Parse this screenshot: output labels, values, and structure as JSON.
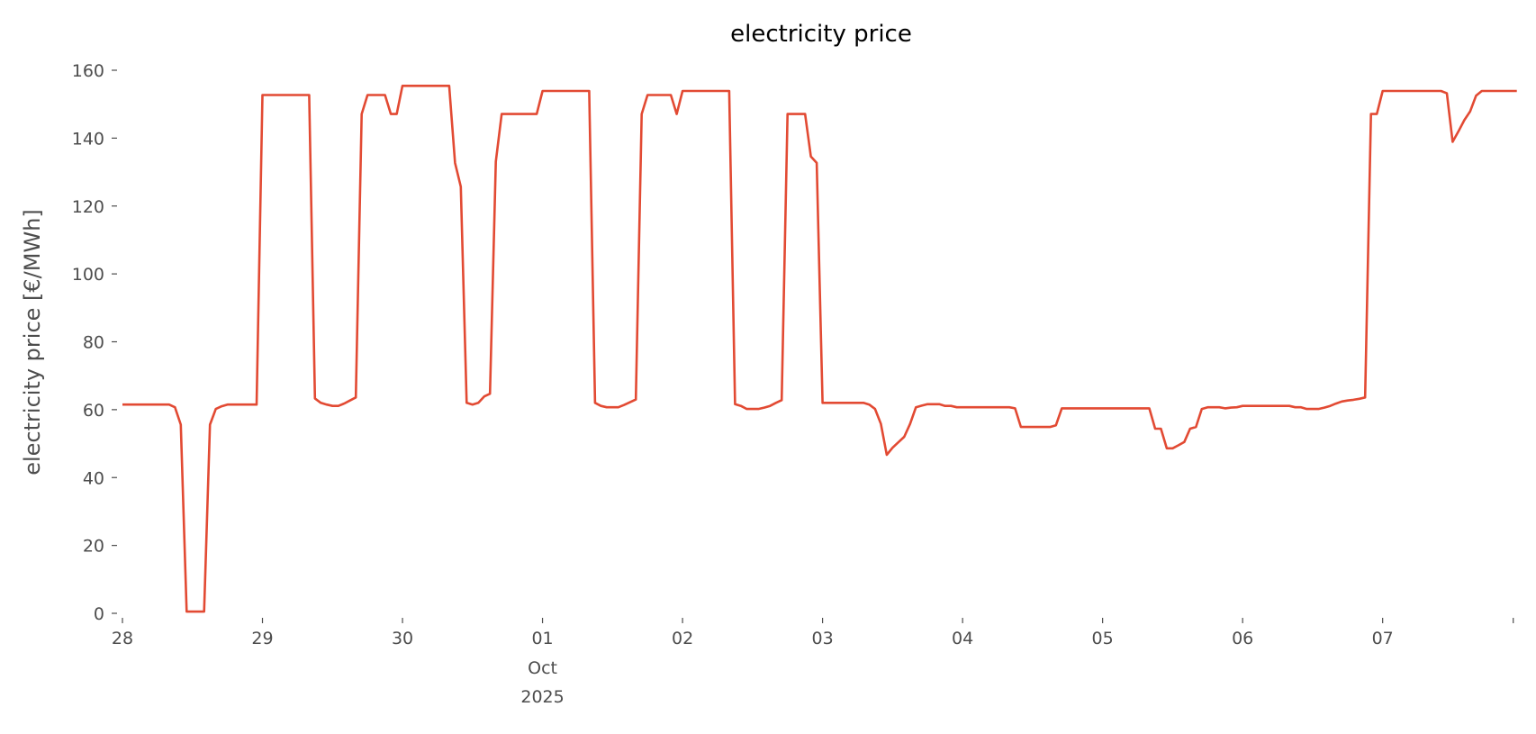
{
  "chart_data": {
    "type": "line",
    "title": "electricity price",
    "xlabel": "",
    "ylabel": "electricity price [€/MWh]",
    "ylim": [
      0,
      160
    ],
    "yticks": [
      0,
      20,
      40,
      60,
      80,
      100,
      120,
      140,
      160
    ],
    "x_start": "2025-09-28 00:00",
    "x_frequency": "hourly",
    "x_end": "2025-10-07 23:00",
    "xticks": [
      {
        "date": "2025-09-28",
        "label": "28"
      },
      {
        "date": "2025-09-29",
        "label": "29"
      },
      {
        "date": "2025-09-30",
        "label": "30"
      },
      {
        "date": "2025-10-01",
        "label": "01",
        "sublabel": "Oct",
        "sublabel2": "2025"
      },
      {
        "date": "2025-10-02",
        "label": "02"
      },
      {
        "date": "2025-10-03",
        "label": "03"
      },
      {
        "date": "2025-10-04",
        "label": "04"
      },
      {
        "date": "2025-10-05",
        "label": "05"
      },
      {
        "date": "2025-10-06",
        "label": "06"
      },
      {
        "date": "2025-10-07",
        "label": "07"
      }
    ],
    "grid": false,
    "legend": "none",
    "line_color": "#E24A33",
    "values": [
      61.5,
      61.5,
      61.5,
      61.5,
      61.5,
      61.5,
      61.5,
      61.5,
      61.5,
      60.7,
      55.6,
      0.5,
      0.5,
      0.5,
      0.5,
      55.6,
      60.2,
      61.0,
      61.5,
      61.5,
      61.5,
      61.5,
      61.5,
      61.5,
      152.7,
      152.7,
      152.7,
      152.7,
      152.7,
      152.7,
      152.7,
      152.7,
      152.7,
      63.3,
      62.0,
      61.5,
      61.1,
      61.1,
      61.8,
      62.7,
      63.6,
      147.1,
      152.7,
      152.7,
      152.7,
      152.7,
      147.1,
      147.1,
      155.4,
      155.4,
      155.4,
      155.4,
      155.4,
      155.4,
      155.4,
      155.4,
      155.4,
      132.7,
      125.7,
      62.0,
      61.5,
      62.0,
      63.9,
      64.7,
      133.1,
      147.1,
      147.1,
      147.1,
      147.1,
      147.1,
      147.1,
      147.1,
      153.9,
      153.9,
      153.9,
      153.9,
      153.9,
      153.9,
      153.9,
      153.9,
      153.9,
      62.0,
      61.1,
      60.7,
      60.7,
      60.7,
      61.4,
      62.2,
      63.0,
      147.1,
      152.7,
      152.7,
      152.7,
      152.7,
      152.7,
      147.1,
      153.9,
      153.9,
      153.9,
      153.9,
      153.9,
      153.9,
      153.9,
      153.9,
      153.9,
      61.6,
      61.1,
      60.2,
      60.2,
      60.2,
      60.6,
      61.1,
      62.0,
      62.8,
      147.1,
      147.1,
      147.1,
      147.1,
      134.6,
      132.7,
      62.0,
      62.0,
      62.0,
      62.0,
      62.0,
      62.0,
      62.0,
      62.0,
      61.5,
      60.2,
      55.8,
      46.7,
      48.8,
      50.4,
      52.0,
      55.8,
      60.7,
      61.2,
      61.6,
      61.6,
      61.6,
      61.1,
      61.1,
      60.7,
      60.7,
      60.7,
      60.7,
      60.7,
      60.7,
      60.7,
      60.7,
      60.7,
      60.7,
      60.4,
      54.9,
      54.9,
      54.9,
      54.9,
      54.9,
      54.9,
      55.4,
      60.4,
      60.4,
      60.4,
      60.4,
      60.4,
      60.4,
      60.4,
      60.4,
      60.4,
      60.4,
      60.4,
      60.4,
      60.4,
      60.4,
      60.4,
      60.4,
      54.4,
      54.4,
      48.6,
      48.6,
      49.5,
      50.5,
      54.4,
      54.9,
      60.2,
      60.7,
      60.7,
      60.7,
      60.4,
      60.6,
      60.7,
      61.1,
      61.1,
      61.1,
      61.1,
      61.1,
      61.1,
      61.1,
      61.1,
      61.1,
      60.7,
      60.7,
      60.2,
      60.2,
      60.2,
      60.6,
      61.1,
      61.8,
      62.4,
      62.7,
      62.9,
      63.2,
      63.6,
      147.1,
      147.1,
      153.9,
      153.9,
      153.9,
      153.9,
      153.9,
      153.9,
      153.9,
      153.9,
      153.9,
      153.9,
      153.9,
      153.2,
      138.9,
      142.0,
      145.3,
      147.9,
      152.5,
      153.9,
      153.9,
      153.9,
      153.9,
      153.9,
      153.9,
      153.9
    ]
  }
}
